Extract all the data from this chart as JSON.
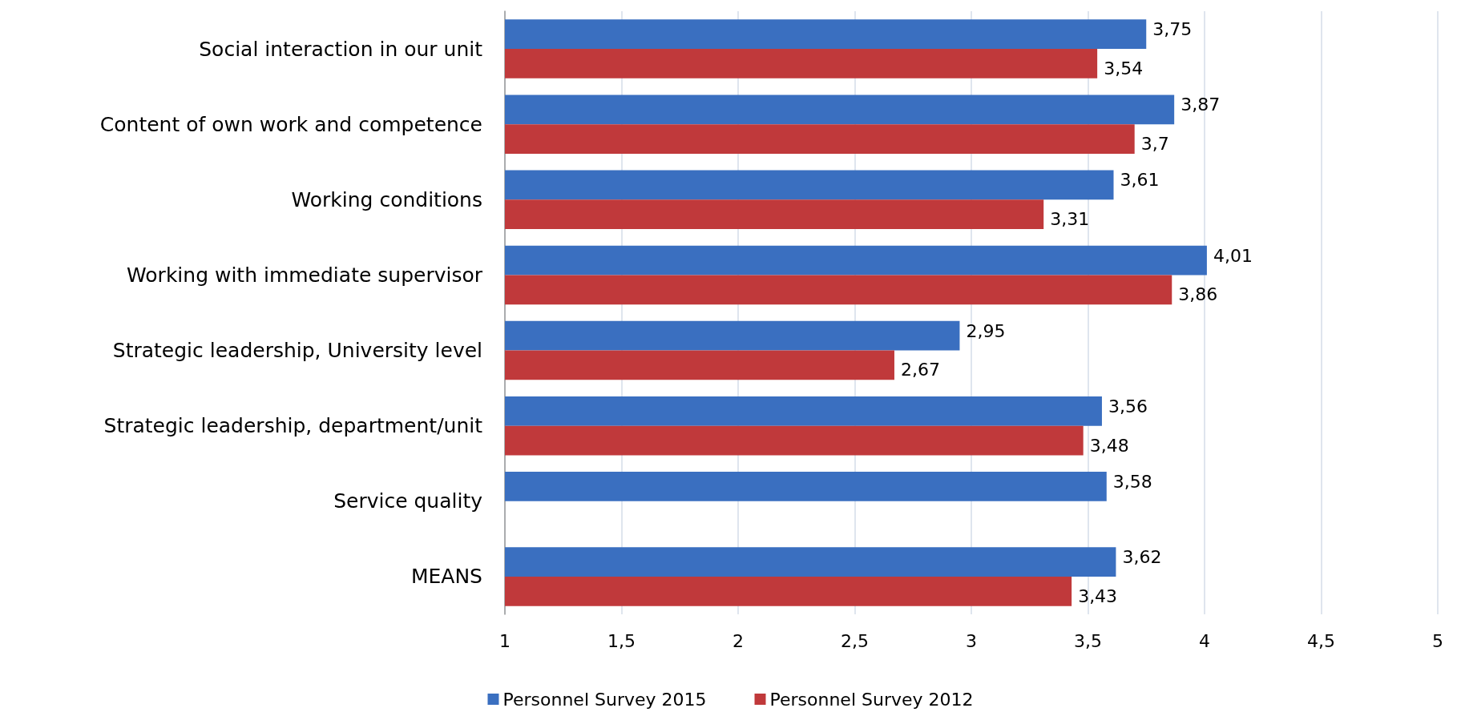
{
  "chart_data": {
    "type": "bar",
    "orientation": "horizontal",
    "categories": [
      "Social interaction in our unit",
      "Content of own work and competence",
      "Working conditions",
      "Working with immediate supervisor",
      "Strategic leadership, University level",
      "Strategic leadership, department/unit",
      "Service quality",
      "MEANS"
    ],
    "series": [
      {
        "name": "Personnel Survey 2015",
        "color": "#3a6fc0",
        "values": [
          3.75,
          3.87,
          3.61,
          4.01,
          2.95,
          3.56,
          3.58,
          3.62
        ],
        "value_labels": [
          "3,75",
          "3,87",
          "3,61",
          "4,01",
          "2,95",
          "3,56",
          "3,58",
          "3,62"
        ]
      },
      {
        "name": "Personnel Survey 2012",
        "color": "#c0393b",
        "values": [
          3.54,
          3.7,
          3.31,
          3.86,
          2.67,
          3.48,
          null,
          3.43
        ],
        "value_labels": [
          "3,54",
          "3,7",
          "3,31",
          "3,86",
          "2,67",
          "3,48",
          null,
          "3,43"
        ]
      }
    ],
    "xlim": [
      1,
      5
    ],
    "xticks": [
      1,
      {
        "value": 1.5,
        "label": "1,5"
      },
      2,
      {
        "value": 2.5,
        "label": "2,5"
      },
      3,
      {
        "value": 3.5,
        "label": "3,5"
      },
      4,
      {
        "value": 4.5,
        "label": "4,5"
      },
      5
    ],
    "grid": "x",
    "legend": "bottom"
  }
}
